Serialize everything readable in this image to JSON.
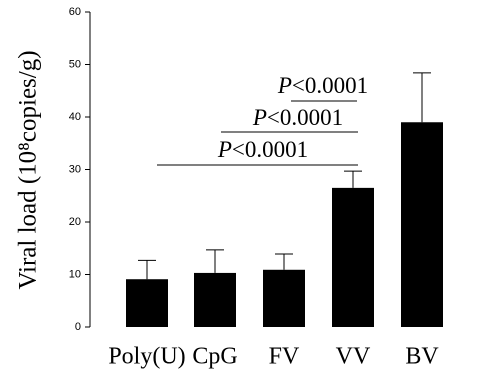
{
  "chart_data": {
    "type": "bar",
    "ylabel": "Viral load (10⁸copies/g)",
    "categories": [
      "Poly(U)",
      "CpG",
      "FV",
      "VV",
      "BV"
    ],
    "values": [
      9.1,
      10.3,
      10.9,
      26.5,
      39.0
    ],
    "errors": [
      3.6,
      4.4,
      3.0,
      3.2,
      9.4
    ],
    "color": "#000000",
    "ylim": [
      0,
      60
    ],
    "yticks": [
      0,
      10,
      20,
      30,
      40,
      50,
      60
    ],
    "annotations": [
      {
        "label": "P<0.0001"
      },
      {
        "label": "P<0.0001"
      },
      {
        "label": "P<0.0001"
      }
    ]
  }
}
